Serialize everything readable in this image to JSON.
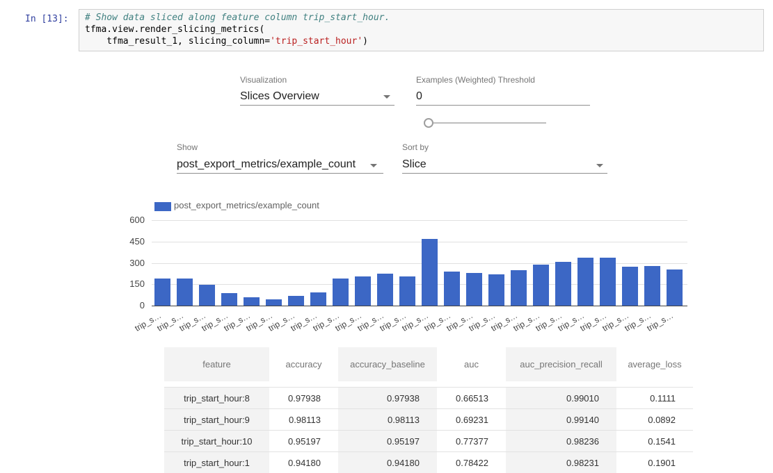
{
  "notebook": {
    "prompt": "In [13]:",
    "code": {
      "line1_comment": "# Show data sliced along feature column trip_start_hour.",
      "line2": "tfma.view.render_slicing_metrics(",
      "line3_pre": "    tfma_result_1, slicing_column=",
      "line3_string": "'trip_start_hour'",
      "line3_close": ")"
    }
  },
  "controls": {
    "visualization": {
      "label": "Visualization",
      "value": "Slices Overview"
    },
    "threshold": {
      "label": "Examples (Weighted) Threshold",
      "value": "0"
    },
    "show": {
      "label": "Show",
      "value": "post_export_metrics/example_count"
    },
    "sort_by": {
      "label": "Sort by",
      "value": "Slice"
    }
  },
  "chart_data": {
    "type": "bar",
    "title": "",
    "legend": "post_export_metrics/example_count",
    "legend_position": "top",
    "grid": true,
    "bar_color": "#3c67c5",
    "ylim": [
      0,
      600
    ],
    "y_ticks": [
      600,
      450,
      300,
      150,
      0
    ],
    "categories": [
      "trip_s…",
      "trip_s…",
      "trip_s…",
      "trip_s…",
      "trip_s…",
      "trip_s…",
      "trip_s…",
      "trip_s…",
      "trip_s…",
      "trip_s…",
      "trip_s…",
      "trip_s…",
      "trip_s…",
      "trip_s…",
      "trip_s…",
      "trip_s…",
      "trip_s…",
      "trip_s…",
      "trip_s…",
      "trip_s…",
      "trip_s…",
      "trip_s…",
      "trip_s…",
      "trip_s…"
    ],
    "values": [
      192,
      192,
      148,
      88,
      60,
      45,
      70,
      94,
      192,
      207,
      226,
      207,
      466,
      237,
      231,
      221,
      250,
      289,
      308,
      338,
      338,
      273,
      279,
      255
    ]
  },
  "table": {
    "columns": [
      "feature",
      "accuracy",
      "accuracy_baseline",
      "auc",
      "auc_precision_recall",
      "average_loss"
    ],
    "rows": [
      [
        "trip_start_hour:8",
        "0.97938",
        "0.97938",
        "0.66513",
        "0.99010",
        "0.1111"
      ],
      [
        "trip_start_hour:9",
        "0.98113",
        "0.98113",
        "0.69231",
        "0.99140",
        "0.0892"
      ],
      [
        "trip_start_hour:10",
        "0.95197",
        "0.95197",
        "0.77377",
        "0.98236",
        "0.1541"
      ],
      [
        "trip_start_hour:1",
        "0.94180",
        "0.94180",
        "0.78422",
        "0.98231",
        "0.1901"
      ]
    ]
  },
  "colors": {
    "accent_blue": "#3c67c5",
    "prompt_blue": "#303F9F",
    "label_gray": "#757575"
  }
}
